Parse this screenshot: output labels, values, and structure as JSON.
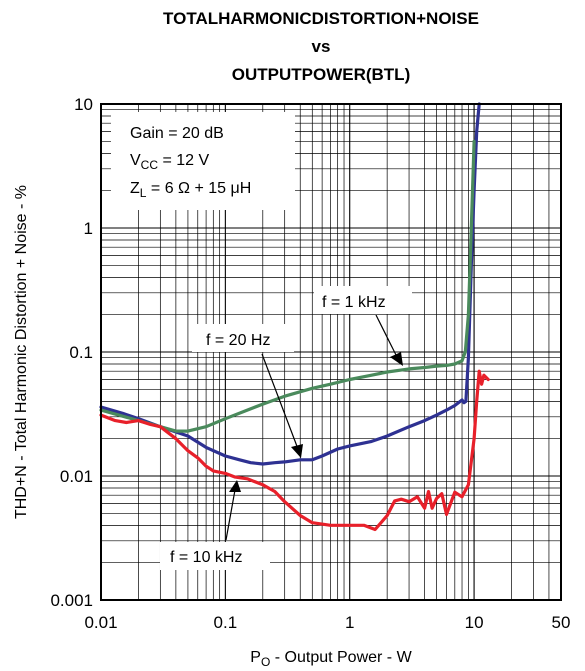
{
  "chart_data": {
    "type": "line",
    "title_lines": [
      "TOTALHARMONICDISTORTION+NOISE",
      "vs",
      "OUTPUTPOWER(BTL)"
    ],
    "xlabel": "P_O - Output Power - W",
    "xlabel_main": "P",
    "xlabel_sub": "O",
    "xlabel_rest": " - Output Power - W",
    "ylabel": "THD+N - Total Harmonic Distortion + Noise - %",
    "x_scale": "log",
    "y_scale": "log",
    "xlim": [
      0.01,
      50
    ],
    "ylim": [
      0.001,
      10
    ],
    "x_ticks": [
      0.01,
      0.1,
      1,
      10,
      50
    ],
    "x_tick_labels": [
      "0.01",
      "0.1",
      "1",
      "10",
      "50"
    ],
    "y_ticks": [
      0.001,
      0.01,
      0.1,
      1,
      10
    ],
    "y_tick_labels": [
      "0.001",
      "0.01",
      "0.1",
      "1",
      "10"
    ],
    "grid": true,
    "conditions": {
      "gain": "Gain = 20 dB",
      "vcc_main": "V",
      "vcc_sub": "CC",
      "vcc_rest": " = 12 V",
      "zl_main": "Z",
      "zl_sub": "L",
      "zl_rest": " = 6 Ω + 15 μH"
    },
    "annotations": [
      {
        "series": "f = 1 kHz",
        "text": "f = 1 kHz"
      },
      {
        "series": "f = 20 Hz",
        "text": "f = 20 Hz"
      },
      {
        "series": "f = 10 kHz",
        "text": "f = 10 kHz"
      }
    ],
    "series": [
      {
        "name": "f = 20 Hz",
        "color": "#2e3192",
        "x": [
          0.01,
          0.015,
          0.02,
          0.03,
          0.05,
          0.07,
          0.1,
          0.13,
          0.16,
          0.2,
          0.25,
          0.3,
          0.4,
          0.5,
          0.6,
          0.8,
          1,
          1.5,
          2,
          3,
          4,
          5,
          6,
          7,
          8,
          8.3,
          8.6,
          9,
          9.5,
          10,
          10.5,
          11
        ],
        "y": [
          0.036,
          0.032,
          0.029,
          0.025,
          0.021,
          0.017,
          0.0145,
          0.0135,
          0.0128,
          0.0125,
          0.0128,
          0.013,
          0.0135,
          0.0135,
          0.0145,
          0.0165,
          0.0175,
          0.019,
          0.021,
          0.025,
          0.028,
          0.031,
          0.034,
          0.037,
          0.041,
          0.039,
          0.04,
          0.09,
          0.5,
          2,
          6,
          10
        ]
      },
      {
        "name": "f = 1 kHz",
        "color": "#4a8a5c",
        "x": [
          0.01,
          0.02,
          0.03,
          0.04,
          0.05,
          0.07,
          0.1,
          0.15,
          0.2,
          0.3,
          0.5,
          0.7,
          1,
          1.5,
          2,
          3,
          4,
          5,
          6,
          7,
          8,
          8.5,
          9,
          9.5,
          10
        ],
        "y": [
          0.034,
          0.028,
          0.025,
          0.023,
          0.023,
          0.025,
          0.029,
          0.034,
          0.038,
          0.044,
          0.051,
          0.055,
          0.06,
          0.065,
          0.069,
          0.073,
          0.075,
          0.077,
          0.078,
          0.08,
          0.085,
          0.1,
          0.2,
          1,
          5
        ]
      },
      {
        "name": "f = 10 kHz",
        "color": "#e8202a",
        "x": [
          0.01,
          0.013,
          0.016,
          0.02,
          0.025,
          0.03,
          0.04,
          0.05,
          0.06,
          0.07,
          0.08,
          0.1,
          0.12,
          0.15,
          0.2,
          0.25,
          0.3,
          0.4,
          0.5,
          0.7,
          1,
          1.3,
          1.6,
          2,
          2.3,
          2.6,
          3,
          3.5,
          4,
          4.3,
          4.6,
          5,
          5.5,
          6,
          7,
          8,
          9,
          10,
          10.5,
          11,
          11.5,
          12,
          13
        ],
        "y": [
          0.031,
          0.028,
          0.027,
          0.028,
          0.026,
          0.025,
          0.02,
          0.016,
          0.014,
          0.012,
          0.011,
          0.0105,
          0.0098,
          0.0095,
          0.0085,
          0.0075,
          0.0062,
          0.0048,
          0.0042,
          0.004,
          0.004,
          0.004,
          0.0037,
          0.0048,
          0.0063,
          0.0065,
          0.0062,
          0.0068,
          0.0055,
          0.0075,
          0.0055,
          0.0066,
          0.0072,
          0.0049,
          0.0074,
          0.0068,
          0.0085,
          0.02,
          0.04,
          0.07,
          0.055,
          0.065,
          0.06
        ]
      }
    ]
  }
}
